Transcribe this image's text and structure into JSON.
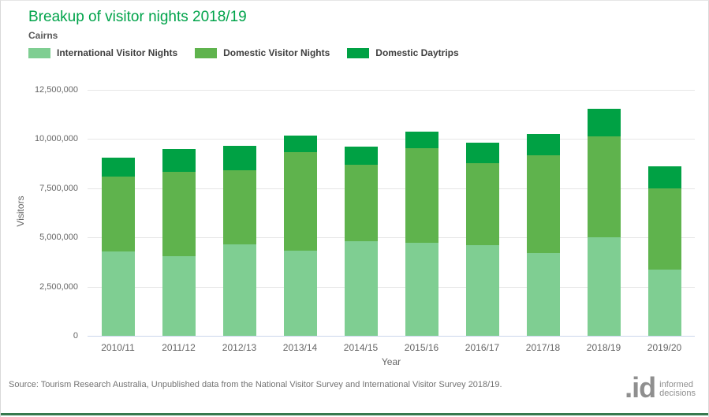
{
  "header": {
    "title": "Breakup of visitor nights 2018/19",
    "subtitle": "Cairns"
  },
  "legend": {
    "items": [
      {
        "label": "International Visitor Nights",
        "color": "#7fce92"
      },
      {
        "label": "Domestic Visitor Nights",
        "color": "#5fb34d"
      },
      {
        "label": "Domestic Daytrips",
        "color": "#00a144"
      }
    ]
  },
  "chart_data": {
    "type": "bar",
    "stacked": true,
    "title": "Breakup of visitor nights 2018/19",
    "subtitle": "Cairns",
    "categories": [
      "2010/11",
      "2011/12",
      "2012/13",
      "2013/14",
      "2014/15",
      "2015/16",
      "2016/17",
      "2017/18",
      "2018/19",
      "2019/20"
    ],
    "series": [
      {
        "name": "International Visitor Nights",
        "color": "#7fce92",
        "values": [
          4270000,
          4050000,
          4630000,
          4340000,
          4810000,
          4720000,
          4610000,
          4220000,
          5000000,
          3370000
        ]
      },
      {
        "name": "Domestic Visitor Nights",
        "color": "#5fb34d",
        "values": [
          3810000,
          4270000,
          3790000,
          4980000,
          3870000,
          4830000,
          4160000,
          4970000,
          5120000,
          4130000
        ]
      },
      {
        "name": "Domestic Daytrips",
        "color": "#00a144",
        "values": [
          970000,
          1180000,
          1230000,
          860000,
          940000,
          840000,
          1060000,
          1050000,
          1430000,
          1110000
        ]
      }
    ],
    "totals": [
      9050000,
      9500000,
      9650000,
      10180000,
      9620000,
      10390000,
      9830000,
      10240000,
      11550000,
      8610000
    ],
    "xlabel": "Year",
    "ylabel": "Visitors",
    "ylim": [
      0,
      12500000
    ],
    "ytick_step": 2500000,
    "ytick_labels": [
      "0",
      "2,500,000",
      "5,000,000",
      "7,500,000",
      "10,000,000",
      "12,500,000"
    ],
    "grid": true,
    "legend_position": "top"
  },
  "footer": {
    "source": "Source: Tourism Research Australia, Unpublished data from the National Visitor Survey and International Visitor Survey 2018/19.",
    "logo": {
      "mark": ".id",
      "line1": "informed",
      "line2": "decisions"
    }
  },
  "colors": {
    "title": "#00a34a",
    "grid": "#e6e6e6",
    "x_axis_line": "#ccd6eb",
    "axis_text": "#666666",
    "bottom_bar": "#37794e"
  }
}
